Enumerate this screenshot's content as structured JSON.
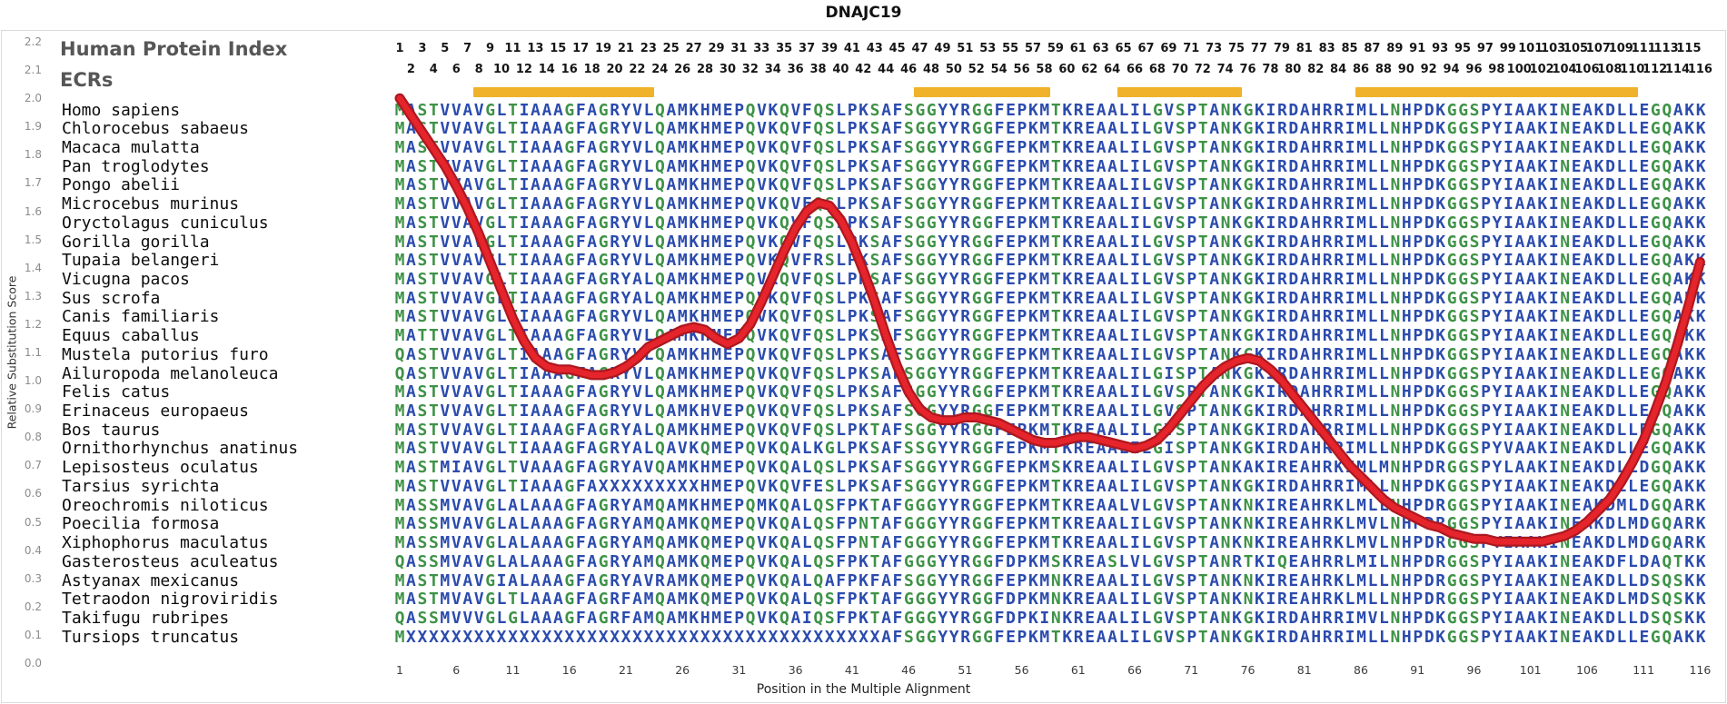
{
  "title": "DNAJC19",
  "header": {
    "protein_index_label": "Human Protein Index",
    "ecrs_label": "ECRs"
  },
  "y_axis": {
    "label": "Relative Substitution Score",
    "ticks": [
      "2.2",
      "2.1",
      "2.0",
      "1.9",
      "1.8",
      "1.7",
      "1.6",
      "1.5",
      "1.4",
      "1.3",
      "1.2",
      "1.1",
      "1.0",
      "0.9",
      "0.8",
      "0.7",
      "0.6",
      "0.5",
      "0.4",
      "0.3",
      "0.2",
      "0.1",
      "0.0"
    ]
  },
  "x_axis": {
    "label": "Position in the Multiple Alignment",
    "ticks": [
      1,
      6,
      11,
      16,
      21,
      26,
      31,
      36,
      41,
      46,
      51,
      56,
      61,
      66,
      71,
      76,
      81,
      86,
      91,
      96,
      101,
      106,
      111,
      116
    ]
  },
  "protein_index": {
    "odd_numbers": [
      1,
      3,
      5,
      7,
      9,
      11,
      13,
      15,
      17,
      19,
      21,
      23,
      25,
      27,
      29,
      31,
      33,
      35,
      37,
      39,
      41,
      43,
      45,
      47,
      49,
      51,
      53,
      55,
      57,
      59,
      61,
      63,
      65,
      67,
      69,
      71,
      73,
      75,
      77,
      79,
      81,
      83,
      85,
      87,
      89,
      91,
      93,
      95,
      97,
      99,
      101,
      103,
      105,
      107,
      109,
      111,
      113,
      115
    ],
    "even_numbers": [
      2,
      4,
      6,
      8,
      10,
      12,
      14,
      16,
      18,
      20,
      22,
      24,
      26,
      28,
      30,
      32,
      34,
      36,
      38,
      40,
      42,
      44,
      46,
      48,
      50,
      52,
      54,
      56,
      58,
      60,
      62,
      64,
      66,
      68,
      70,
      72,
      74,
      76,
      78,
      80,
      82,
      84,
      86,
      88,
      90,
      92,
      94,
      96,
      98,
      100,
      102,
      104,
      106,
      108,
      110,
      112,
      114,
      116
    ]
  },
  "ecr_regions": [
    {
      "start": 8,
      "end": 23
    },
    {
      "start": 47,
      "end": 58
    },
    {
      "start": 65,
      "end": 75
    },
    {
      "start": 86,
      "end": 110
    }
  ],
  "colors": {
    "ecr_orange": "#F0B22A",
    "line_red": "#E5242B",
    "line_red_dark": "#AD1820",
    "header_text": "#565656",
    "axis_text": "#8C8C8C"
  },
  "residue_colors": {
    "blue": "#2B4BAD",
    "green": "#3E9247",
    "x": "#2B4BAD",
    "green_residues": "GSTNQC",
    "start_met_green": true
  },
  "alignment": {
    "positions": 116,
    "species": [
      {
        "name": "Homo sapiens",
        "sequence": "MASTVVAVGLTIAAAGFAGRYVLQAMKHMEPQVKQVFQSLPKSAFSGGYYRGGFEPKMTKREAALILGVSPTANKGKIRDAHRRIMLLNHPDKGGSPYIAAKINEAKDLLEGQAKK"
      },
      {
        "name": "Chlorocebus sabaeus",
        "sequence": "MASTVVAVGLTIAAAGFAGRYVLQAMKHMEPQVKQVFQSLPKSAFSGGYYRGGFEPKMTKREAALILGVSPTANKGKIRDAHRRIMLLNHPDKGGSPYIAAKINEAKDLLEGQAKK"
      },
      {
        "name": "Macaca mulatta",
        "sequence": "MASTVVAVGLTIAAAGFAGRYVLQAMKHMEPQVKQVFQSLPKSAFSGGYYRGGFEPKMTKREAALILGVSPTANKGKIRDAHRRIMLLNHPDKGGSPYIAAKINEAKDLLEGQAKK"
      },
      {
        "name": "Pan troglodytes",
        "sequence": "MASTVVAVGLTIAAAGFAGRYVLQAMKHMEPQVKQVFQSLPKSAFSGGYYRGGFEPKMTKREAALILGVSPTANKGKIRDAHRRIMLLNHPDKGGSPYIAAKINEAKDLLEGQAKK"
      },
      {
        "name": "Pongo abelii",
        "sequence": "MASTVVAVGLTIAAAGFAGRYVLQAMKHMEPQVKQVFQSLPKSAFSGGYYRGGFEPKMTKREAALILGVSPTANKGKIRDAHRRIMLLNHPDKGGSPYIAAKINEAKDLLEGQAKK"
      },
      {
        "name": "Microcebus murinus",
        "sequence": "MASTVVAVGLTIAAAGFAGRYVLQAMKHMEPQVKQVFQSLPKSAFSGGYYRGGFEPKMTKREAALILGVSPTANKGKIRDAHRRIMLLNHPDKGGSPYIAAKINEAKDLLEGQAKK"
      },
      {
        "name": "Oryctolagus cuniculus",
        "sequence": "MASTVVAVGLTIAAAGFAGRYVLQAMKHMEPQVKQVFQSLPKSAFSGGYYRGGFEPKMTKREAALILGVSPTANKGKIRDAHRRIMLLNHPDKGGSPYIAAKINEAKDLLEGQAKK"
      },
      {
        "name": "Gorilla gorilla",
        "sequence": "MASTVVAVGLTIAAAGFAGRYVLQAMKHMEPQVKQVFQSLPKSAFSGGYYRGGFEPKMTKREAALILGVSPTANKGKIRDAHRRIMLLNHPDKGGSPYIAAKINEAKDLLEGQAKK"
      },
      {
        "name": "Tupaia belangeri",
        "sequence": "MASTVVAVGLTIAAAGFAGRYVLQAMKHMEPQVKQVFRSLPKSAFSGGYYRGGFEPKMTKREAALILGVSPTANKGKIRDAHRRIMLLNHPDKGGSPYIAAKINEAKDLLEGQAKK"
      },
      {
        "name": "Vicugna pacos",
        "sequence": "MASTVVAVGLTIAAAGFAGRYALQAMKHMEPQVKQVFQSLPKSAFSGGYYRGGFEPKMTKREAALILGVSPTANKGKIRDAHRRIMLLNHPDKGGSPYIAAKINEAKDLLEGQAKK"
      },
      {
        "name": "Sus scrofa",
        "sequence": "MASTVVAVGLTIAAAGFAGRYALQAMKHMEPQVKQVFQSLPKSAFSGGYYRGGFEPKMTKREAALILGVSPTANKGKIRDAHRRIMLLNHPDKGGSPYIAAKINEAKDLLEGQAKK"
      },
      {
        "name": "Canis familiaris",
        "sequence": "MASTVVAVGLTIAAAGFAGRYVLQAMKHMEPQVKQVFQSLPKSAFSGGYYRGGFEPKMTKREAALILGVSPTANKGKIRDAHRRIMLLNHPDKGGSPYIAAKINEAKDLLEGQAKK"
      },
      {
        "name": "Equus caballus",
        "sequence": "MATTVVAVGLTIAAAGFAGRYVLQAMKHMEPQVKQVFQSLPKSAFSGGYYRGGFEPKMTKREAALILGVSPTANKGKIRDAHRRIMLLNHPDKGGSPYIAAKINEAKDLLEGQAKK"
      },
      {
        "name": "Mustela putorius furo",
        "sequence": "QASTVVAVGLTIAAAGFAGRYVLQAMKHMEPQVKQVFQSLPKSAFSGGYYRGGFEPKMTKREAALILGVSPTANKGKIRDAHRRIMLLNHPDKGGSPYIAAKINEAKDLLEGQAKK"
      },
      {
        "name": "Ailuropoda melanoleuca",
        "sequence": "QASTVVAVGLTIAAAGFAGRYVLQAMKHMEPQVKQVFQSLPKSAFSGGYYRGGFEPKMTKREAALILGISPTANKGKIRDAHRRIMLLNHPDKGGSPYIAAKINEAKDLLEGQAKK"
      },
      {
        "name": "Felis catus",
        "sequence": "MASTVVAVGLTIAAAGFAGRYVLQAMKHMEPQVKQVFQSLPKSAFSGGYYRGGFEPKMTKREAALILGVSPTANKGKIRDAHRRIMLLNHPDKGGSPYIAAKINEAKDLLEGQAKK"
      },
      {
        "name": "Erinaceus europaeus",
        "sequence": "MASTVVAVGLTIAAAGFAGRYVLQAMKHVEPQVKQVFQSLPKSAFSGGYYRGGFEPKMTKREAALILGVSPTANKGKIRDAHRRIMLLNHPDKGGSPYIAAKINEAKDLLEGQAKK"
      },
      {
        "name": "Bos taurus",
        "sequence": "MASTVVAVGLTIAAAGFAGRYALQAMKHMEPQVKQVFQSLPKTAFSGGYYRGGFEPKMTKREAALILGVSPTANKGKIRDAHRRIMLLNHPDKGGSPYIAAKINEAKDLLEGQAKK"
      },
      {
        "name": "Ornithorhynchus anatinus",
        "sequence": "MASTVVAVGLTIAAAGFAGRYALQAVKQMEPQVKQALKGLPKSAFSSGYYRGGFEPKMTKREAALILGISPTANKGKIRDAHRRIMLLNHPDKGGSPYVAAKINEAKDLLEGQAKK"
      },
      {
        "name": "Lepisosteus oculatus",
        "sequence": "MASTMIAVGLTVAAAGFAGRYAVQAMKHMEPQVKQALQSLPKSAFSGGYYRGGFEPKMSKREAALILGVSPTANKAKIREAHRKIMLMNHPDRGGSPYLAAKINEAKDLLDGQAKK"
      },
      {
        "name": "Tarsius syrichta",
        "sequence": "MASTVVAVGLTIAAAGFAXXXXXXXXXHMEPQVKQVFESLPKSAFSGGYYRGGFEPKMTKREAALILGVSPTANKGKIRDAHRRIMLLNHPDKGGSPYIAAKINEAKDLLEGQAKK"
      },
      {
        "name": "Oreochromis niloticus",
        "sequence": "MASSMVAVGLALAAAGFAGRYAMQAMKHMEPQMKQALQSFPKTAFGGGYYRGGFEPKMTKREAALVLGVSPTANKNKIREAHRKLMLLNHPDRGGSPYIAAKINEAKDMLDGQARK"
      },
      {
        "name": "Poecilia formosa",
        "sequence": "MASSMVAVGLALAAAGFAGRYAMQAMKQMEPQVKQALQSFPNTAFGGGYYRGGFEPKMTKREAALILGVSPTANKNKIREAHRKLMVLNHPDRGGSPYIAAKINEAKDLMDGQARK"
      },
      {
        "name": "Xiphophorus maculatus",
        "sequence": "MASSMVAVGLALAAAGFAGRYAMQAMKQMEPQVKQALQSFPNTAFGGGYYRGGFEPKMTKREAALILGVSPTANKNKIREAHRKLMVLNHPDRGGSPYIAAKINEAKDLMDGQARK"
      },
      {
        "name": "Gasterosteus aculeatus",
        "sequence": "QASSMVAVGLALAAAGFAGRYAMQAMKQMEPQVKQALQSFPKTAFGGGYYRGGFDPKMSKREASLVLGVSPTANRTKIQEAHRRLMILNHPDRGGSPYIAAKINEAKDFLDAQTKK"
      },
      {
        "name": "Astyanax mexicanus",
        "sequence": "MASTMVAVGIALAAAGFAGRYAVRAMKQMEPQVKQALQAFPKFAFSGGYYRGGFEPKMNKREAALILGVSPTANKNKIREAHRKLMLLNHPDRGGSPYIAAKINEAKDLLDSQSKK"
      },
      {
        "name": "Tetraodon nigroviridis",
        "sequence": "MASTMVAVGLTLAAAGFAGRFAMQAMKQMEPQVKQALQSFPKTAFGGGYYRGGFDPKMNKREAALILGVSPTANKNKIREAHRKLMLLNHPDRGGSPYIAAKINEAKDLMDSQSKK"
      },
      {
        "name": "Takifugu rubripes",
        "sequence": "QASSMVVVGLGLAAAGFAGRFAMQAMKHMEPQVKQAIQSFPKTAFGGGYYRGGFDPKINKREAALILGVSPTANKGKIRDAHRRIMVLNHPDKGGSPYIAAKINEAKDLLDSQSKK"
      },
      {
        "name": "Tursiops truncatus",
        "sequence": "MXXXXXXXXXXXXXXXXXXXXXXXXXXXXXXXXXXXXXXXXXXAFSGGYYRGGFEPKMTKREAALILGVSPTANKGKIRDAHRRIMLLNHPDKGGSPYIAAKINEAKDLLEGQAKK"
      }
    ]
  },
  "chart_data": {
    "type": "line",
    "title": "DNAJC19",
    "xlabel": "Position in the Multiple Alignment",
    "ylabel": "Relative Substitution Score",
    "x_range": [
      1,
      116
    ],
    "x_step": 1,
    "ylim": [
      0.0,
      2.2
    ],
    "grid": false,
    "legend": "none",
    "series": [
      {
        "name": "Relative Substitution Score",
        "color": "#E5242B",
        "values": [
          2.0,
          1.94,
          1.88,
          1.82,
          1.76,
          1.69,
          1.61,
          1.52,
          1.42,
          1.32,
          1.22,
          1.14,
          1.08,
          1.05,
          1.04,
          1.04,
          1.03,
          1.02,
          1.02,
          1.03,
          1.05,
          1.08,
          1.12,
          1.14,
          1.16,
          1.18,
          1.19,
          1.18,
          1.15,
          1.13,
          1.15,
          1.2,
          1.28,
          1.37,
          1.46,
          1.54,
          1.6,
          1.63,
          1.62,
          1.57,
          1.49,
          1.39,
          1.28,
          1.16,
          1.05,
          0.96,
          0.9,
          0.87,
          0.86,
          0.86,
          0.87,
          0.87,
          0.86,
          0.85,
          0.83,
          0.81,
          0.79,
          0.78,
          0.78,
          0.79,
          0.8,
          0.8,
          0.79,
          0.78,
          0.77,
          0.76,
          0.77,
          0.79,
          0.83,
          0.88,
          0.93,
          0.98,
          1.02,
          1.05,
          1.07,
          1.08,
          1.07,
          1.04,
          1.0,
          0.95,
          0.9,
          0.85,
          0.8,
          0.75,
          0.7,
          0.66,
          0.62,
          0.58,
          0.55,
          0.53,
          0.51,
          0.49,
          0.48,
          0.46,
          0.45,
          0.44,
          0.44,
          0.43,
          0.43,
          0.43,
          0.43,
          0.43,
          0.44,
          0.45,
          0.47,
          0.5,
          0.54,
          0.58,
          0.64,
          0.71,
          0.79,
          0.89,
          1.0,
          1.13,
          1.27,
          1.42
        ]
      }
    ]
  }
}
